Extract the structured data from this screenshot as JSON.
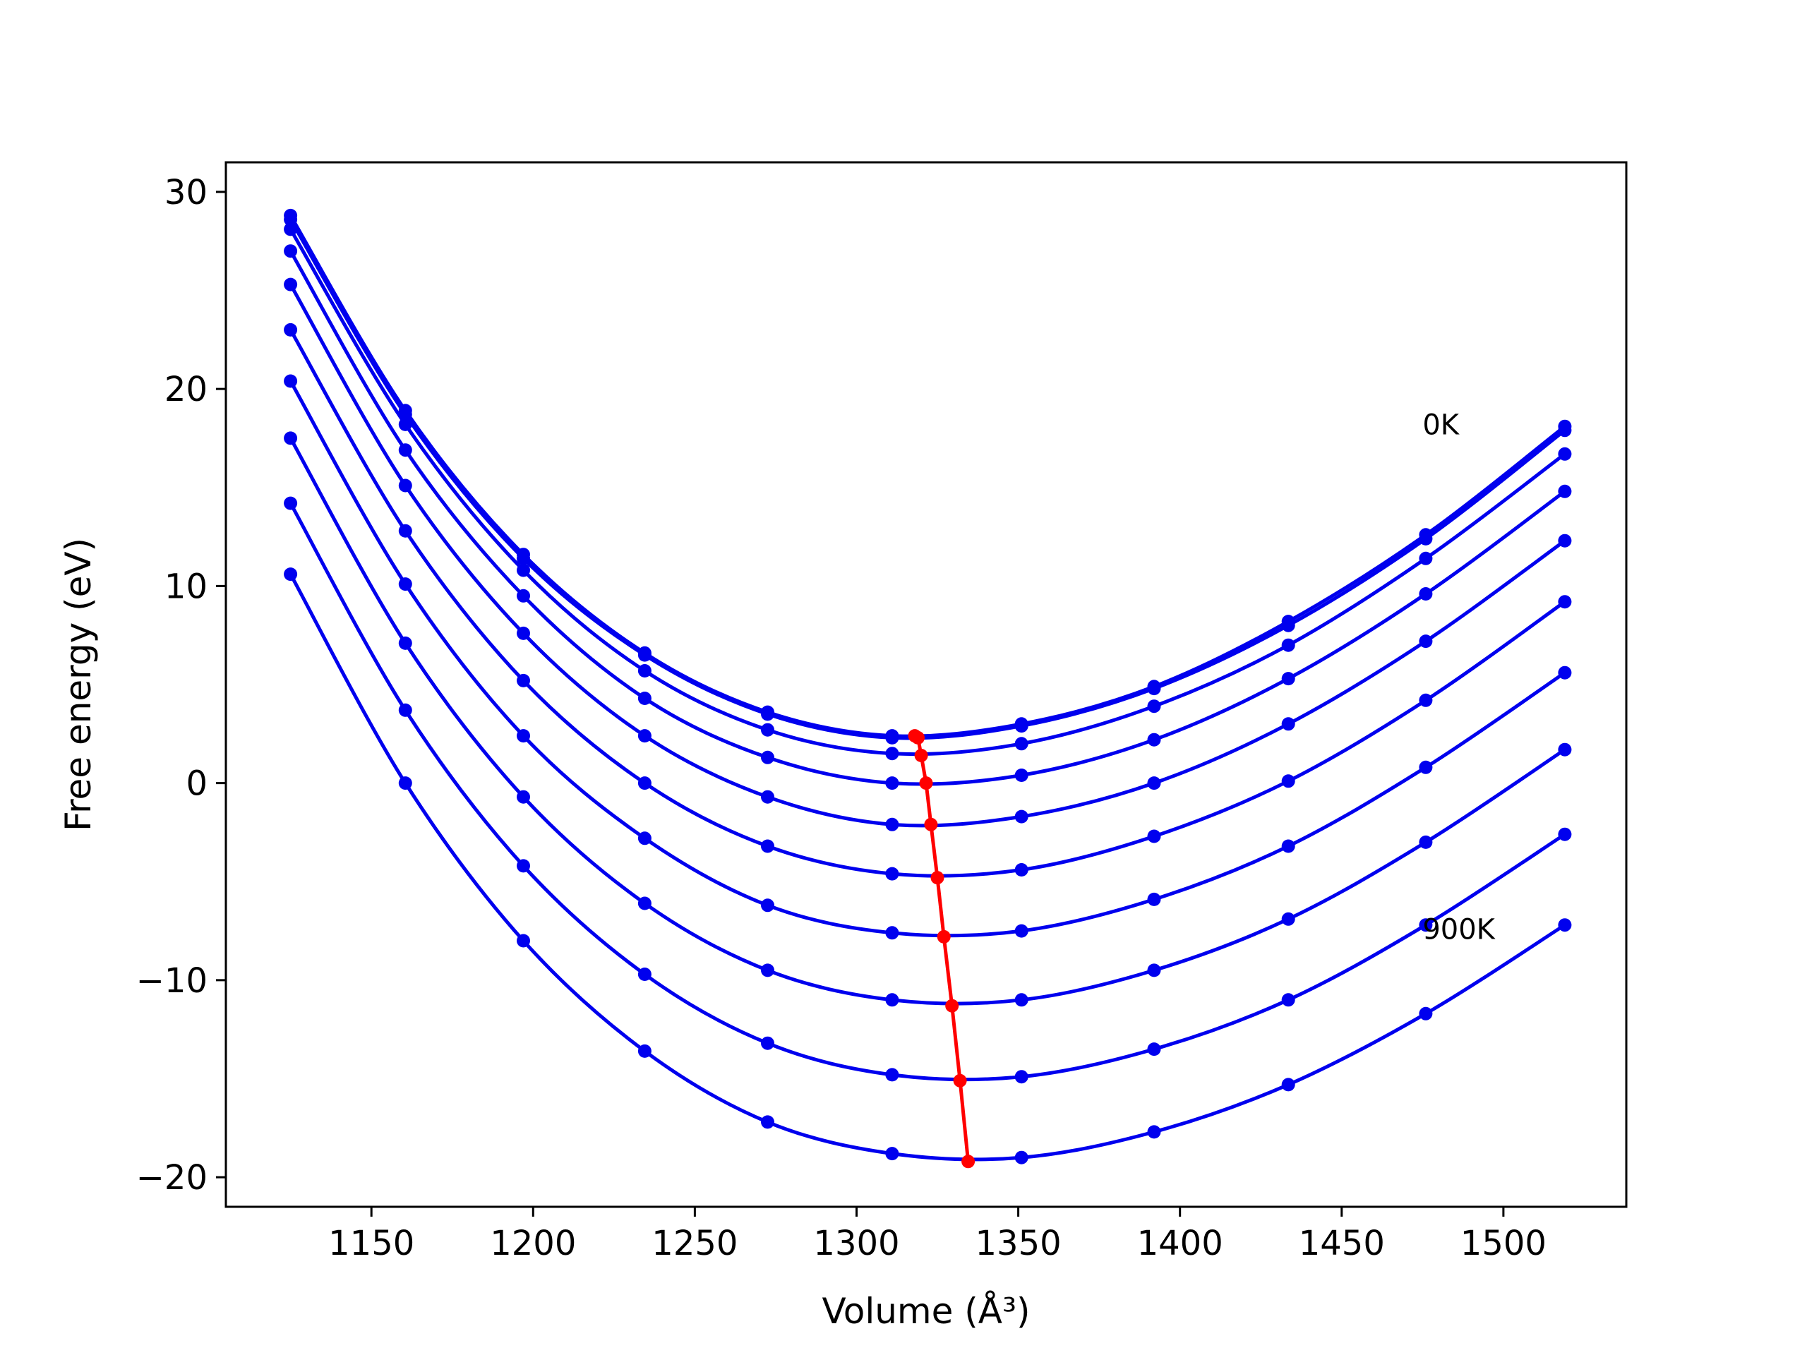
{
  "chart_data": {
    "type": "line",
    "title": "",
    "xlabel": "Volume (Å³)",
    "ylabel": "Free energy (eV)",
    "xlim": [
      1105,
      1538
    ],
    "ylim": [
      -21.5,
      31.5
    ],
    "xticks": [
      1150,
      1200,
      1250,
      1300,
      1350,
      1400,
      1450,
      1500
    ],
    "yticks": [
      -20,
      -10,
      0,
      10,
      20,
      30
    ],
    "grid": false,
    "legend": "none",
    "colors": {
      "series": "#0000ee",
      "minimum": "#ff0000"
    },
    "x": [
      1125,
      1160.5,
      1197,
      1234.5,
      1272.5,
      1311,
      1351,
      1392,
      1433.5,
      1476,
      1519
    ],
    "series": [
      {
        "values": [
          28.8,
          18.9,
          11.6,
          6.6,
          3.6,
          2.4,
          3.0,
          4.9,
          8.2,
          12.6,
          18.1
        ]
      },
      {
        "values": [
          28.6,
          18.7,
          11.4,
          6.5,
          3.5,
          2.3,
          2.9,
          4.8,
          8.0,
          12.4,
          17.9
        ]
      },
      {
        "values": [
          28.1,
          18.2,
          10.8,
          5.7,
          2.7,
          1.5,
          2.0,
          3.9,
          7.0,
          11.4,
          16.7
        ]
      },
      {
        "values": [
          27.0,
          16.9,
          9.5,
          4.3,
          1.3,
          0.0,
          0.4,
          2.2,
          5.3,
          9.6,
          14.8
        ]
      },
      {
        "values": [
          25.3,
          15.1,
          7.6,
          2.4,
          -0.7,
          -2.1,
          -1.7,
          0.0,
          3.0,
          7.2,
          12.3
        ]
      },
      {
        "values": [
          23.0,
          12.8,
          5.2,
          0.0,
          -3.2,
          -4.6,
          -4.4,
          -2.7,
          0.1,
          4.2,
          9.2
        ]
      },
      {
        "values": [
          20.4,
          10.1,
          2.4,
          -2.8,
          -6.2,
          -7.6,
          -7.5,
          -5.9,
          -3.2,
          0.8,
          5.6
        ]
      },
      {
        "values": [
          17.5,
          7.1,
          -0.7,
          -6.1,
          -9.5,
          -11.0,
          -11.0,
          -9.5,
          -6.9,
          -3.0,
          1.7
        ]
      },
      {
        "values": [
          14.2,
          3.7,
          -4.2,
          -9.7,
          -13.2,
          -14.8,
          -14.9,
          -13.5,
          -11.0,
          -7.2,
          -2.6
        ]
      },
      {
        "values": [
          10.6,
          0.0,
          -8.0,
          -13.6,
          -17.2,
          -18.8,
          -19.0,
          -17.7,
          -15.3,
          -11.7,
          -7.2
        ]
      }
    ],
    "minimum_line": {
      "x": [
        1318,
        1319,
        1320,
        1321.5,
        1323,
        1325,
        1327,
        1329.5,
        1332,
        1334.5
      ],
      "y": [
        2.4,
        2.3,
        1.4,
        0.0,
        -2.1,
        -4.8,
        -7.8,
        -11.3,
        -15.1,
        -19.2
      ]
    },
    "annotations": [
      {
        "text": "0K",
        "x": 1475,
        "y": 18.2
      },
      {
        "text": "900K",
        "x": 1475,
        "y": -7.4
      }
    ]
  }
}
